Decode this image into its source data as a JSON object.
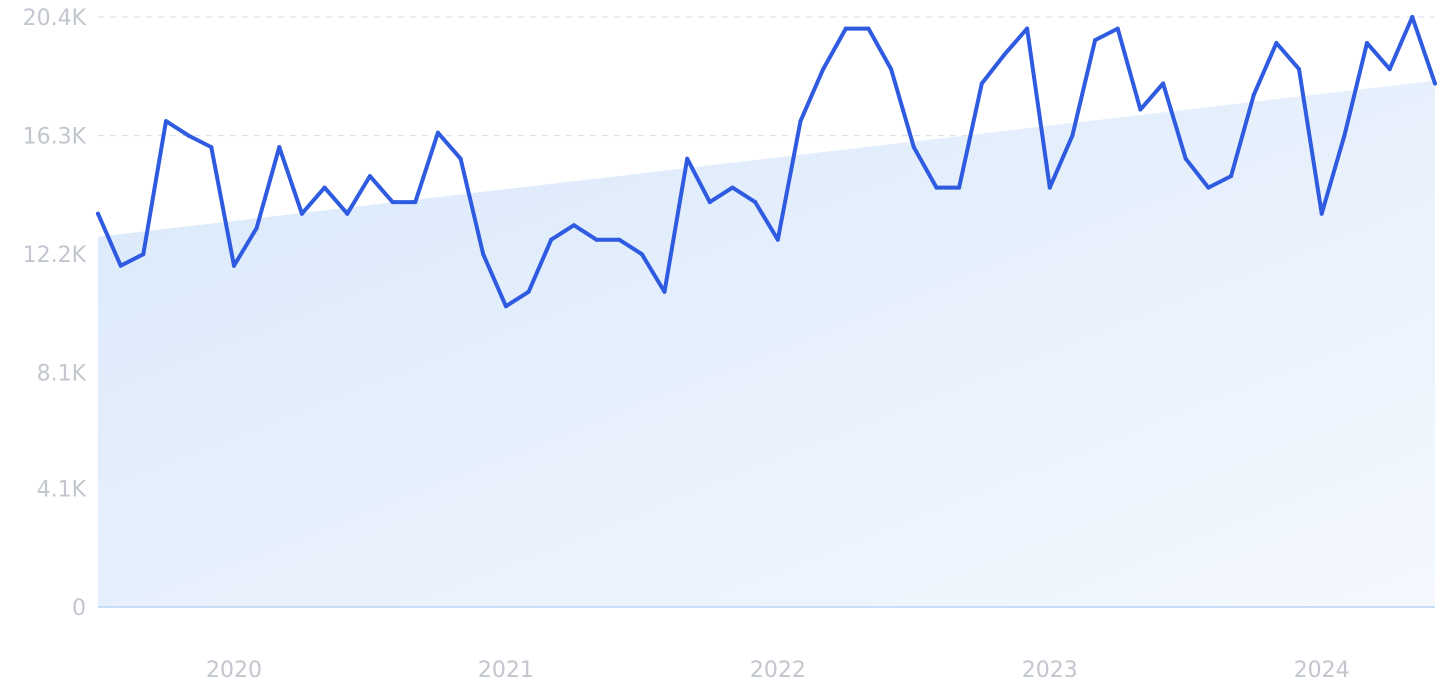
{
  "chart_data": {
    "type": "line",
    "title": "",
    "xlabel": "",
    "ylabel": "",
    "ylim": [
      0,
      20400
    ],
    "y_ticks": [
      {
        "value": 0,
        "label": "0"
      },
      {
        "value": 4100,
        "label": "4.1K"
      },
      {
        "value": 8100,
        "label": "8.1K"
      },
      {
        "value": 12200,
        "label": "12.2K"
      },
      {
        "value": 16300,
        "label": "16.3K"
      },
      {
        "value": 20400,
        "label": "20.4K"
      }
    ],
    "x_ticks": [
      {
        "value": "2020-01",
        "label": "2020"
      },
      {
        "value": "2021-01",
        "label": "2021"
      },
      {
        "value": "2022-01",
        "label": "2022"
      },
      {
        "value": "2023-01",
        "label": "2023"
      },
      {
        "value": "2024-01",
        "label": "2024"
      }
    ],
    "x_range": [
      "2019-07",
      "2024-06"
    ],
    "grid": true,
    "legend": "none",
    "colors": {
      "line": "#2f5be0",
      "area_top": "#d9e8fa",
      "area_bottom": "#f4f8fe",
      "grid": "#d9e3ec"
    },
    "series": [
      {
        "x": [
          "2019-07",
          "2019-08",
          "2019-09",
          "2019-10",
          "2019-11",
          "2019-12",
          "2020-01",
          "2020-02",
          "2020-03",
          "2020-04",
          "2020-05",
          "2020-06",
          "2020-07",
          "2020-08",
          "2020-09",
          "2020-10",
          "2020-11",
          "2020-12",
          "2021-01",
          "2021-02",
          "2021-03",
          "2021-04",
          "2021-05",
          "2021-06",
          "2021-07",
          "2021-08",
          "2021-09",
          "2021-10",
          "2021-11",
          "2021-12",
          "2022-01",
          "2022-02",
          "2022-03",
          "2022-04",
          "2022-05",
          "2022-06",
          "2022-07",
          "2022-08",
          "2022-09",
          "2022-10",
          "2022-11",
          "2022-12",
          "2023-01",
          "2023-02",
          "2023-03",
          "2023-04",
          "2023-05",
          "2023-06",
          "2023-07",
          "2023-08",
          "2023-09",
          "2023-10",
          "2023-11",
          "2023-12",
          "2024-01",
          "2024-02",
          "2024-03",
          "2024-04",
          "2024-05",
          "2024-06"
        ],
        "values": [
          13600,
          11800,
          12200,
          16800,
          16300,
          15900,
          11800,
          13100,
          15900,
          13600,
          14500,
          13600,
          14900,
          14000,
          14000,
          16400,
          15500,
          12200,
          10400,
          10900,
          12700,
          13200,
          12700,
          12700,
          12200,
          10900,
          15500,
          14000,
          14500,
          14000,
          12700,
          16800,
          18600,
          20000,
          20000,
          18600,
          15900,
          14500,
          14500,
          18100,
          19100,
          20000,
          14500,
          16300,
          19600,
          20000,
          17200,
          18100,
          15500,
          14500,
          14900,
          17700,
          19500,
          18600,
          13600,
          16300,
          19500,
          18600,
          20400,
          18100
        ]
      },
      {
        "x": [
          "2019-07",
          "2024-06"
        ],
        "values": [
          12800,
          18200
        ]
      }
    ]
  }
}
